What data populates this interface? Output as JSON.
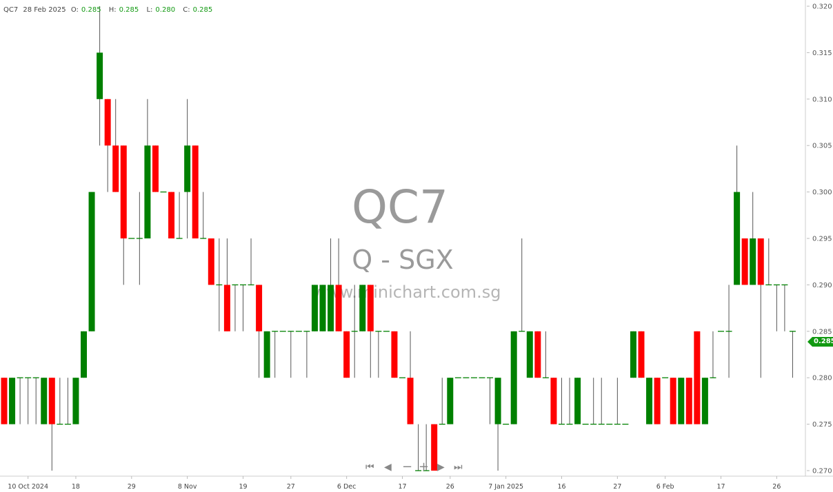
{
  "header": {
    "symbol": "QC7",
    "date": "28 Feb 2025",
    "o_label": "O:",
    "o": "0.285",
    "h_label": "H:",
    "h": "0.285",
    "l_label": "L:",
    "l": "0.280",
    "c_label": "C:",
    "c": "0.285"
  },
  "watermark": {
    "symbol": "QC7",
    "exchange": "Q - SGX",
    "site": "www.minichart.com.sg"
  },
  "last_price_tag": "0.285",
  "nav": {
    "first": "⏮",
    "prev": "◀",
    "zoom_out": "−",
    "zoom_in": "+",
    "next": "▶",
    "last": "⏭"
  },
  "colors": {
    "up": "#008000",
    "down": "#ff0000",
    "wick": "#555555",
    "doji": "#008000",
    "tag": "#119911"
  },
  "chart_data": {
    "type": "candlestick",
    "ylim": [
      0.27,
      0.32
    ],
    "y_ticks": [
      "0.320",
      "0.315",
      "0.310",
      "0.305",
      "0.300",
      "0.295",
      "0.290",
      "0.285",
      "0.280",
      "0.275",
      "0.270"
    ],
    "x_ticks": [
      {
        "label": "10 Oct 2024",
        "index": 3
      },
      {
        "label": "18",
        "index": 9
      },
      {
        "label": "29",
        "index": 16
      },
      {
        "label": "8 Nov",
        "index": 23
      },
      {
        "label": "19",
        "index": 30
      },
      {
        "label": "27",
        "index": 36
      },
      {
        "label": "6 Dec",
        "index": 43
      },
      {
        "label": "17",
        "index": 50
      },
      {
        "label": "26",
        "index": 56
      },
      {
        "label": "7 Jan 2025",
        "index": 63
      },
      {
        "label": "16",
        "index": 70
      },
      {
        "label": "27",
        "index": 77
      },
      {
        "label": "6 Feb",
        "index": 83
      },
      {
        "label": "17",
        "index": 90
      },
      {
        "label": "26",
        "index": 97
      }
    ],
    "ohlc": [
      [
        0.28,
        0.28,
        0.275,
        0.275
      ],
      [
        0.275,
        0.28,
        0.275,
        0.28
      ],
      [
        0.28,
        0.28,
        0.275,
        0.28
      ],
      [
        0.28,
        0.28,
        0.275,
        0.28
      ],
      [
        0.28,
        0.28,
        0.275,
        0.28
      ],
      [
        0.275,
        0.28,
        0.275,
        0.28
      ],
      [
        0.28,
        0.28,
        0.27,
        0.275
      ],
      [
        0.275,
        0.28,
        0.275,
        0.275
      ],
      [
        0.275,
        0.28,
        0.275,
        0.275
      ],
      [
        0.275,
        0.28,
        0.275,
        0.28
      ],
      [
        0.28,
        0.285,
        0.28,
        0.285
      ],
      [
        0.285,
        0.3,
        0.285,
        0.3
      ],
      [
        0.31,
        0.32,
        0.305,
        0.315
      ],
      [
        0.31,
        0.31,
        0.3,
        0.305
      ],
      [
        0.305,
        0.31,
        0.3,
        0.3
      ],
      [
        0.305,
        0.305,
        0.29,
        0.295
      ],
      [
        0.295,
        0.295,
        0.295,
        0.295
      ],
      [
        0.295,
        0.3,
        0.29,
        0.295
      ],
      [
        0.295,
        0.31,
        0.295,
        0.305
      ],
      [
        0.305,
        0.305,
        0.3,
        0.3
      ],
      [
        0.3,
        0.3,
        0.3,
        0.3
      ],
      [
        0.3,
        0.3,
        0.295,
        0.295
      ],
      [
        0.295,
        0.3,
        0.295,
        0.295
      ],
      [
        0.3,
        0.31,
        0.295,
        0.305
      ],
      [
        0.305,
        0.305,
        0.295,
        0.295
      ],
      [
        0.295,
        0.3,
        0.295,
        0.295
      ],
      [
        0.295,
        0.295,
        0.29,
        0.29
      ],
      [
        0.29,
        0.295,
        0.285,
        0.29
      ],
      [
        0.29,
        0.295,
        0.285,
        0.285
      ],
      [
        0.29,
        0.29,
        0.285,
        0.29
      ],
      [
        0.29,
        0.29,
        0.285,
        0.29
      ],
      [
        0.29,
        0.295,
        0.29,
        0.29
      ],
      [
        0.29,
        0.29,
        0.28,
        0.285
      ],
      [
        0.28,
        0.285,
        0.28,
        0.285
      ],
      [
        0.285,
        0.285,
        0.28,
        0.285
      ],
      [
        0.285,
        0.285,
        0.285,
        0.285
      ],
      [
        0.285,
        0.285,
        0.28,
        0.285
      ],
      [
        0.285,
        0.285,
        0.285,
        0.285
      ],
      [
        0.285,
        0.285,
        0.28,
        0.285
      ],
      [
        0.285,
        0.29,
        0.285,
        0.29
      ],
      [
        0.285,
        0.29,
        0.285,
        0.29
      ],
      [
        0.285,
        0.295,
        0.285,
        0.29
      ],
      [
        0.29,
        0.295,
        0.285,
        0.285
      ],
      [
        0.285,
        0.285,
        0.28,
        0.28
      ],
      [
        0.285,
        0.29,
        0.28,
        0.285
      ],
      [
        0.285,
        0.29,
        0.285,
        0.29
      ],
      [
        0.29,
        0.29,
        0.28,
        0.285
      ],
      [
        0.285,
        0.285,
        0.28,
        0.285
      ],
      [
        0.285,
        0.285,
        0.285,
        0.285
      ],
      [
        0.285,
        0.285,
        0.28,
        0.28
      ],
      [
        0.28,
        0.28,
        0.28,
        0.28
      ],
      [
        0.28,
        0.285,
        0.275,
        0.275
      ],
      [
        0.27,
        0.275,
        0.27,
        0.27
      ],
      [
        0.27,
        0.275,
        0.27,
        0.27
      ],
      [
        0.275,
        0.275,
        0.27,
        0.27
      ],
      [
        0.275,
        0.28,
        0.275,
        0.275
      ],
      [
        0.275,
        0.28,
        0.275,
        0.28
      ],
      [
        0.28,
        0.28,
        0.28,
        0.28
      ],
      [
        0.28,
        0.28,
        0.28,
        0.28
      ],
      [
        0.28,
        0.28,
        0.28,
        0.28
      ],
      [
        0.28,
        0.28,
        0.28,
        0.28
      ],
      [
        0.28,
        0.28,
        0.275,
        0.28
      ],
      [
        0.275,
        0.28,
        0.27,
        0.28
      ],
      [
        0.275,
        0.275,
        0.275,
        0.275
      ],
      [
        0.275,
        0.285,
        0.275,
        0.285
      ],
      [
        0.285,
        0.295,
        0.285,
        0.285
      ],
      [
        0.28,
        0.285,
        0.28,
        0.285
      ],
      [
        0.285,
        0.285,
        0.28,
        0.28
      ],
      [
        0.28,
        0.285,
        0.28,
        0.28
      ],
      [
        0.28,
        0.28,
        0.275,
        0.275
      ],
      [
        0.275,
        0.28,
        0.275,
        0.275
      ],
      [
        0.275,
        0.28,
        0.275,
        0.275
      ],
      [
        0.275,
        0.28,
        0.275,
        0.28
      ],
      [
        0.275,
        0.275,
        0.275,
        0.275
      ],
      [
        0.275,
        0.28,
        0.275,
        0.275
      ],
      [
        0.275,
        0.28,
        0.275,
        0.275
      ],
      [
        0.275,
        0.275,
        0.275,
        0.275
      ],
      [
        0.275,
        0.28,
        0.275,
        0.275
      ],
      [
        0.275,
        0.275,
        0.275,
        0.275
      ],
      [
        0.28,
        0.285,
        0.28,
        0.285
      ],
      [
        0.285,
        0.285,
        0.28,
        0.28
      ],
      [
        0.275,
        0.28,
        0.275,
        0.28
      ],
      [
        0.28,
        0.28,
        0.275,
        0.275
      ],
      [
        0.28,
        0.28,
        0.28,
        0.28
      ],
      [
        0.28,
        0.28,
        0.275,
        0.275
      ],
      [
        0.275,
        0.28,
        0.275,
        0.28
      ],
      [
        0.28,
        0.28,
        0.275,
        0.275
      ],
      [
        0.285,
        0.285,
        0.275,
        0.275
      ],
      [
        0.275,
        0.28,
        0.275,
        0.28
      ],
      [
        0.28,
        0.285,
        0.28,
        0.28
      ],
      [
        0.285,
        0.285,
        0.285,
        0.285
      ],
      [
        0.285,
        0.29,
        0.28,
        0.285
      ],
      [
        0.29,
        0.305,
        0.29,
        0.3
      ],
      [
        0.295,
        0.295,
        0.29,
        0.29
      ],
      [
        0.29,
        0.3,
        0.29,
        0.295
      ],
      [
        0.295,
        0.295,
        0.28,
        0.29
      ],
      [
        0.29,
        0.295,
        0.29,
        0.29
      ],
      [
        0.29,
        0.29,
        0.285,
        0.29
      ],
      [
        0.29,
        0.29,
        0.285,
        0.29
      ],
      [
        0.285,
        0.285,
        0.28,
        0.285
      ]
    ]
  }
}
